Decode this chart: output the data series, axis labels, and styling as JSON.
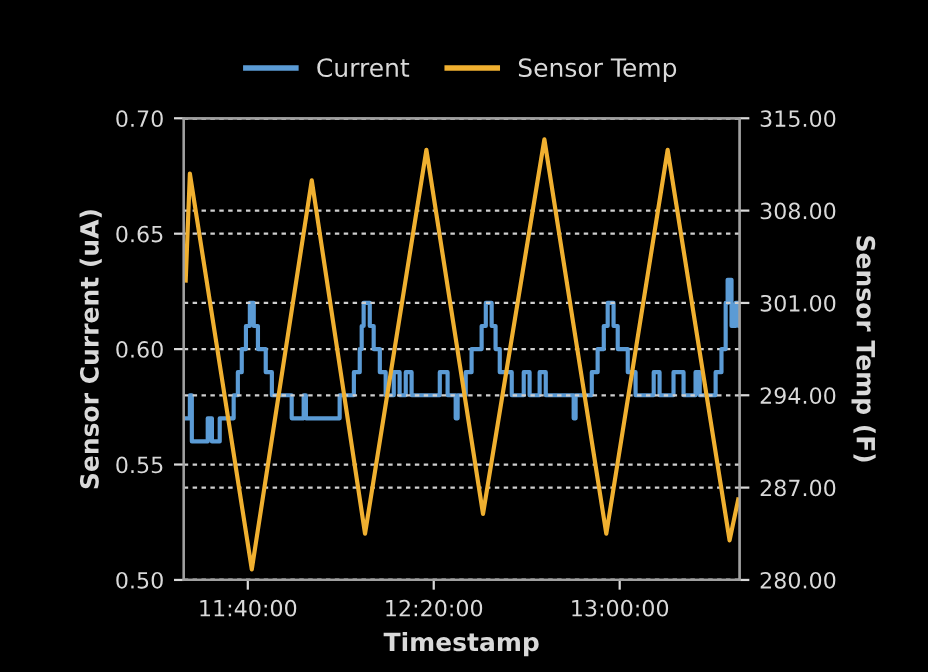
{
  "chart_data": {
    "type": "line",
    "xlabel": "Timestamp",
    "ylabel": "Sensor Current (uA)",
    "y2label": "Sensor Temp (F)",
    "xlim": [
      11.437,
      13.43
    ],
    "xticks": [
      {
        "value": 11.6667,
        "label": "11:40:00"
      },
      {
        "value": 12.3333,
        "label": "12:20:00"
      },
      {
        "value": 13.0,
        "label": "13:00:00"
      }
    ],
    "ylim": [
      0.5,
      0.7
    ],
    "yticks": [
      {
        "value": 0.5,
        "label": "0.50"
      },
      {
        "value": 0.55,
        "label": "0.55"
      },
      {
        "value": 0.6,
        "label": "0.60"
      },
      {
        "value": 0.65,
        "label": "0.65"
      },
      {
        "value": 0.7,
        "label": "0.70"
      }
    ],
    "y2lim": [
      280,
      315
    ],
    "y2ticks": [
      {
        "value": 280,
        "label": "280.00"
      },
      {
        "value": 287,
        "label": "287.00"
      },
      {
        "value": 294,
        "label": "294.00"
      },
      {
        "value": 301,
        "label": "301.00"
      },
      {
        "value": 308,
        "label": "308.00"
      },
      {
        "value": 315,
        "label": "315.00"
      }
    ],
    "grid": "y",
    "legend": "top",
    "series": [
      {
        "name": "Current",
        "type": "step",
        "color": "#5b9bd5",
        "x": [
          11.437,
          11.459,
          11.466,
          11.523,
          11.538,
          11.566,
          11.616,
          11.631,
          11.645,
          11.66,
          11.674,
          11.688,
          11.703,
          11.731,
          11.753,
          11.824,
          11.867,
          11.875,
          11.996,
          12.047,
          12.068,
          12.075,
          12.082,
          12.104,
          12.118,
          12.14,
          12.161,
          12.19,
          12.211,
          12.233,
          12.254,
          12.319,
          12.355,
          12.383,
          12.412,
          12.419,
          12.448,
          12.469,
          12.505,
          12.52,
          12.541,
          12.555,
          12.57,
          12.613,
          12.656,
          12.677,
          12.713,
          12.735,
          12.835,
          12.842,
          12.9,
          12.921,
          12.943,
          12.957,
          12.978,
          12.993,
          13.029,
          13.057,
          13.122,
          13.143,
          13.193,
          13.229,
          13.272,
          13.287,
          13.344,
          13.365,
          13.38,
          13.387,
          13.401,
          13.416,
          13.43
        ],
        "values": [
          0.57,
          0.58,
          0.56,
          0.57,
          0.56,
          0.57,
          0.58,
          0.59,
          0.6,
          0.61,
          0.62,
          0.61,
          0.6,
          0.59,
          0.58,
          0.57,
          0.58,
          0.57,
          0.58,
          0.59,
          0.6,
          0.61,
          0.62,
          0.61,
          0.6,
          0.59,
          0.58,
          0.59,
          0.58,
          0.59,
          0.58,
          0.58,
          0.59,
          0.58,
          0.57,
          0.58,
          0.59,
          0.6,
          0.61,
          0.62,
          0.61,
          0.6,
          0.59,
          0.58,
          0.59,
          0.58,
          0.59,
          0.58,
          0.57,
          0.58,
          0.59,
          0.6,
          0.61,
          0.62,
          0.61,
          0.6,
          0.59,
          0.58,
          0.59,
          0.58,
          0.59,
          0.58,
          0.59,
          0.58,
          0.59,
          0.6,
          0.62,
          0.63,
          0.61,
          0.62,
          0.61
        ]
      },
      {
        "name": "Sensor Temp",
        "axis": "y2",
        "color": "#f0b030",
        "x": [
          11.444,
          11.459,
          11.681,
          11.896,
          12.087,
          12.307,
          12.51,
          12.73,
          12.952,
          13.172,
          13.394,
          13.425
        ],
        "values": [
          302.7,
          310.8,
          280.8,
          310.3,
          283.5,
          312.6,
          285.0,
          313.4,
          283.5,
          312.6,
          283.0,
          286.1
        ]
      }
    ]
  }
}
